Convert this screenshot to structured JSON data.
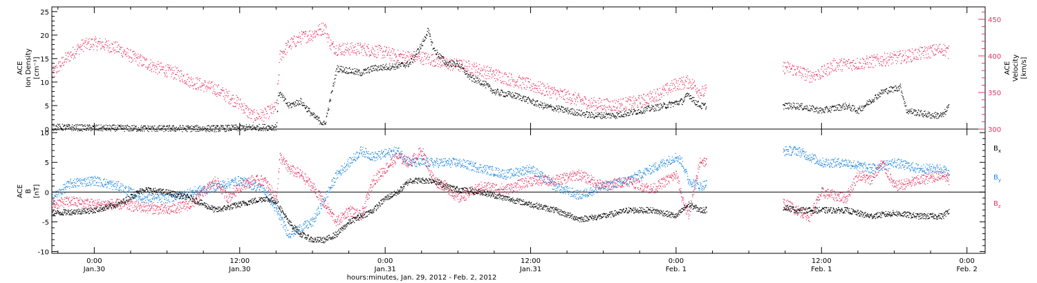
{
  "chart_data": [
    {
      "type": "scatter",
      "title": "",
      "xlabel": "hours:minutes, Jan. 29, 2012 - Feb. 2, 2012",
      "x_ticks": [
        {
          "hour": 0,
          "time": "0:00",
          "date": "Jan.30"
        },
        {
          "hour": 12,
          "time": "12:00",
          "date": "Jan.30"
        },
        {
          "hour": 24,
          "time": "0:00",
          "date": "Jan.31"
        },
        {
          "hour": 36,
          "time": "12:00",
          "date": "Jan.31"
        },
        {
          "hour": 48,
          "time": "0:00",
          "date": "Feb. 1"
        },
        {
          "hour": 60,
          "time": "12:00",
          "date": "Feb. 1"
        },
        {
          "hour": 72,
          "time": "0:00",
          "date": "Feb. 2"
        }
      ],
      "xlim_hours_from_jan30": [
        -3.5,
        73.5
      ],
      "ylabel_left": [
        "ACE",
        "Ion Density",
        "[cm⁻³]"
      ],
      "ylim_left": [
        0,
        26
      ],
      "yticks_left": [
        "0",
        "5",
        "10",
        "15",
        "20",
        "25"
      ],
      "ylabel_right": [
        "ACE",
        "Velocity",
        "[km/s]"
      ],
      "ylim_right": [
        300,
        467
      ],
      "yticks_right": [
        "300",
        "350",
        "400",
        "450"
      ],
      "colors": {
        "density": "#000000",
        "velocity": "#e8305e"
      },
      "series": [
        {
          "axis": "left",
          "color": "#000000",
          "points": [
            [
              -3.5,
              0.5
            ],
            [
              0,
              0.3
            ],
            [
              5,
              0.2
            ],
            [
              10,
              0.2
            ],
            [
              15,
              0.5
            ],
            [
              15.2,
              8
            ],
            [
              16,
              5
            ],
            [
              17,
              6
            ],
            [
              18,
              3
            ],
            [
              19,
              1
            ],
            [
              19.5,
              7
            ],
            [
              20,
              13
            ],
            [
              22,
              12
            ],
            [
              23,
              13
            ],
            [
              25,
              13.5
            ],
            [
              26,
              14
            ],
            [
              27,
              18
            ],
            [
              27.5,
              21
            ],
            [
              28,
              17
            ],
            [
              29,
              14
            ],
            [
              30,
              14
            ],
            [
              31,
              11
            ],
            [
              32,
              10
            ],
            [
              33,
              8
            ],
            [
              35,
              7
            ],
            [
              36,
              6
            ],
            [
              37,
              5
            ],
            [
              39,
              4
            ],
            [
              41,
              3
            ],
            [
              43,
              3
            ],
            [
              45,
              4
            ],
            [
              47,
              5
            ],
            [
              48.5,
              6
            ],
            [
              49,
              7.5
            ],
            [
              49.5,
              6
            ],
            [
              50,
              5
            ],
            [
              50.5,
              5
            ],
            [
              58,
              5
            ],
            [
              60,
              4
            ],
            [
              62,
              5
            ],
            [
              63,
              4
            ],
            [
              64,
              6
            ],
            [
              65,
              8
            ],
            [
              66.5,
              9
            ],
            [
              67,
              4
            ],
            [
              69,
              3
            ],
            [
              70,
              3
            ],
            [
              70.5,
              5
            ]
          ]
        },
        {
          "axis": "right",
          "color": "#e8305e",
          "points": [
            [
              -3.5,
              375
            ],
            [
              -2.5,
              395
            ],
            [
              -1,
              415
            ],
            [
              0,
              418
            ],
            [
              1,
              415
            ],
            [
              2,
              410
            ],
            [
              3,
              400
            ],
            [
              5,
              385
            ],
            [
              7,
              375
            ],
            [
              8,
              365
            ],
            [
              10,
              355
            ],
            [
              12,
              335
            ],
            [
              13,
              318
            ],
            [
              14,
              320
            ],
            [
              15,
              330
            ],
            [
              15.3,
              400
            ],
            [
              16,
              415
            ],
            [
              17,
              425
            ],
            [
              18,
              430
            ],
            [
              19,
              440
            ],
            [
              19.5,
              415
            ],
            [
              20,
              410
            ],
            [
              22,
              410
            ],
            [
              24,
              405
            ],
            [
              25,
              400
            ],
            [
              27,
              398
            ],
            [
              28,
              395
            ],
            [
              29,
              390
            ],
            [
              31,
              385
            ],
            [
              33,
              375
            ],
            [
              35,
              365
            ],
            [
              37,
              355
            ],
            [
              39,
              345
            ],
            [
              41,
              335
            ],
            [
              43,
              333
            ],
            [
              45,
              338
            ],
            [
              47,
              352
            ],
            [
              48,
              362
            ],
            [
              49,
              365
            ],
            [
              49.5,
              360
            ],
            [
              50,
              350
            ],
            [
              57,
              385
            ],
            [
              58,
              380
            ],
            [
              59,
              373
            ],
            [
              60,
              377
            ],
            [
              61,
              388
            ],
            [
              63,
              390
            ],
            [
              65,
              395
            ],
            [
              67,
              400
            ],
            [
              70,
              410
            ],
            [
              70.5,
              405
            ]
          ]
        }
      ]
    },
    {
      "type": "scatter",
      "title": "",
      "ylabel_left": [
        "ACE",
        "B",
        "[nT]"
      ],
      "ylim_left": [
        -10.3,
        10.6
      ],
      "yticks_left": [
        "-10",
        "-5",
        "0",
        "5",
        "10"
      ],
      "colors": {
        "Bx": "#000000",
        "By": "#1a85e0",
        "Bz": "#e8305e"
      },
      "series": [
        {
          "name": "B",
          "sub": "x",
          "color": "#000000",
          "points": [
            [
              -3.5,
              -3.5
            ],
            [
              0,
              -3
            ],
            [
              2,
              -2
            ],
            [
              4,
              0.5
            ],
            [
              6,
              0
            ],
            [
              8,
              -1
            ],
            [
              10,
              -3
            ],
            [
              12,
              -2
            ],
            [
              14,
              -1
            ],
            [
              15,
              -1.5
            ],
            [
              16,
              -5
            ],
            [
              17,
              -7
            ],
            [
              18,
              -8
            ],
            [
              19,
              -8
            ],
            [
              20,
              -7
            ],
            [
              21,
              -5
            ],
            [
              22,
              -4
            ],
            [
              23,
              -3
            ],
            [
              24,
              -1
            ],
            [
              25,
              0
            ],
            [
              26,
              2
            ],
            [
              28,
              2
            ],
            [
              29,
              1
            ],
            [
              30,
              0.5
            ],
            [
              32,
              0
            ],
            [
              34,
              -1
            ],
            [
              36,
              -2
            ],
            [
              38,
              -3
            ],
            [
              40,
              -4.5
            ],
            [
              42,
              -4
            ],
            [
              44,
              -3
            ],
            [
              46,
              -3
            ],
            [
              48,
              -4
            ],
            [
              48.5,
              -3
            ],
            [
              49,
              -2
            ],
            [
              50,
              -3
            ],
            [
              57,
              -2.5
            ],
            [
              58,
              -3
            ],
            [
              60,
              -3
            ],
            [
              62,
              -3
            ],
            [
              64,
              -4
            ],
            [
              66,
              -3.5
            ],
            [
              68,
              -4
            ],
            [
              70,
              -4
            ],
            [
              70.5,
              -3
            ]
          ]
        },
        {
          "name": "B",
          "sub": "y",
          "color": "#1a85e0",
          "points": [
            [
              -3.5,
              -1
            ],
            [
              -2,
              1.5
            ],
            [
              0,
              2
            ],
            [
              2,
              1
            ],
            [
              4,
              -1
            ],
            [
              6,
              -1
            ],
            [
              8,
              0
            ],
            [
              10,
              1
            ],
            [
              12,
              2
            ],
            [
              14,
              0.5
            ],
            [
              15,
              -3
            ],
            [
              16,
              -7
            ],
            [
              17,
              -6
            ],
            [
              18,
              -5
            ],
            [
              19,
              -1
            ],
            [
              20,
              3
            ],
            [
              21,
              5
            ],
            [
              22,
              7
            ],
            [
              23,
              6
            ],
            [
              24,
              6.5
            ],
            [
              25,
              7
            ],
            [
              26,
              5
            ],
            [
              28,
              5
            ],
            [
              30,
              5
            ],
            [
              32,
              4
            ],
            [
              34,
              3
            ],
            [
              36,
              4
            ],
            [
              38,
              1
            ],
            [
              40,
              -0.5
            ],
            [
              42,
              1
            ],
            [
              44,
              2
            ],
            [
              46,
              4
            ],
            [
              47,
              5
            ],
            [
              48,
              6
            ],
            [
              48.5,
              5
            ],
            [
              49,
              2
            ],
            [
              50,
              1
            ],
            [
              57,
              7
            ],
            [
              58,
              7
            ],
            [
              59,
              6
            ],
            [
              60,
              5
            ],
            [
              62,
              5
            ],
            [
              64,
              4
            ],
            [
              66,
              5
            ],
            [
              68,
              4
            ],
            [
              70,
              4
            ],
            [
              70.5,
              3
            ]
          ]
        },
        {
          "name": "B",
          "sub": "z",
          "color": "#e8305e",
          "points": [
            [
              -3.5,
              -2
            ],
            [
              -2,
              -1.5
            ],
            [
              0,
              -2
            ],
            [
              2,
              -2
            ],
            [
              4,
              -2.5
            ],
            [
              6,
              -3
            ],
            [
              8,
              -2
            ],
            [
              9,
              0
            ],
            [
              10,
              2
            ],
            [
              11,
              -1
            ],
            [
              12,
              1
            ],
            [
              13,
              2
            ],
            [
              14,
              2
            ],
            [
              15,
              -1
            ],
            [
              15.3,
              6
            ],
            [
              16,
              4
            ],
            [
              17,
              3
            ],
            [
              18,
              1
            ],
            [
              19,
              -2
            ],
            [
              20,
              -5
            ],
            [
              21,
              -3
            ],
            [
              22,
              -4
            ],
            [
              23,
              2
            ],
            [
              24,
              4
            ],
            [
              25,
              6
            ],
            [
              26,
              5
            ],
            [
              27,
              7
            ],
            [
              28,
              2
            ],
            [
              29,
              1
            ],
            [
              30,
              -1
            ],
            [
              32,
              1
            ],
            [
              34,
              0.5
            ],
            [
              36,
              2
            ],
            [
              38,
              2
            ],
            [
              40,
              3
            ],
            [
              42,
              1
            ],
            [
              44,
              2
            ],
            [
              46,
              0.5
            ],
            [
              48,
              3
            ],
            [
              48.5,
              -1
            ],
            [
              49,
              -4
            ],
            [
              50,
              5.5
            ],
            [
              57,
              -2
            ],
            [
              58,
              -3
            ],
            [
              59,
              -4
            ],
            [
              60,
              0
            ],
            [
              62,
              -1
            ],
            [
              63,
              3
            ],
            [
              64,
              2
            ],
            [
              65,
              5
            ],
            [
              66,
              1
            ],
            [
              68,
              2
            ],
            [
              70,
              3
            ],
            [
              70.5,
              2
            ]
          ]
        }
      ],
      "legend": [
        {
          "name": "B",
          "sub": "x",
          "color": "#000000"
        },
        {
          "name": "B",
          "sub": "y",
          "color": "#1a85e0"
        },
        {
          "name": "B",
          "sub": "z",
          "color": "#e8305e"
        }
      ],
      "legend_placement": "right"
    }
  ]
}
